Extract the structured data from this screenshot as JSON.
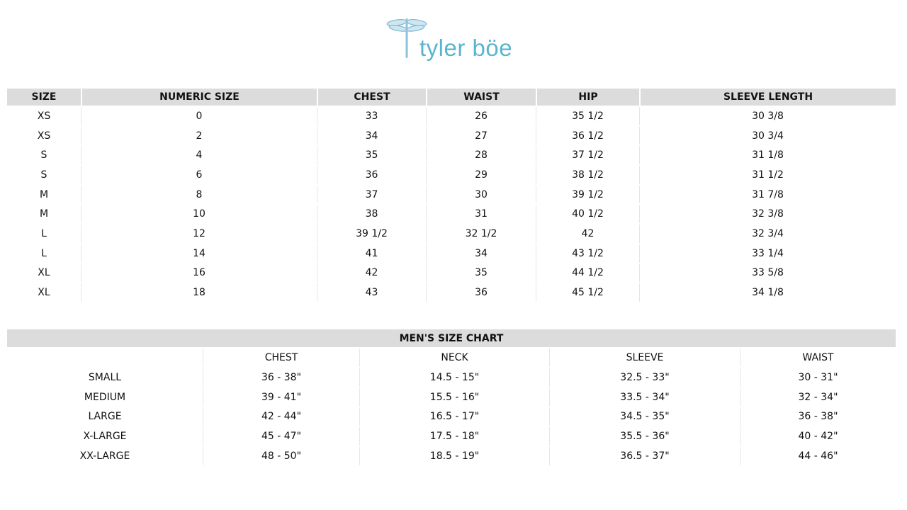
{
  "brand": {
    "logo_text": "tyler böe",
    "logo_icon": "dragonfly-icon",
    "accent_color": "#5ab4cf"
  },
  "womens_table": {
    "headers": [
      "SIZE",
      "NUMERIC SIZE",
      "CHEST",
      "WAIST",
      "HIP",
      "SLEEVE LENGTH"
    ],
    "rows": [
      [
        "XS",
        "0",
        "33",
        "26",
        "35 1/2",
        "30 3/8"
      ],
      [
        "XS",
        "2",
        "34",
        "27",
        "36 1/2",
        "30 3/4"
      ],
      [
        "S",
        "4",
        "35",
        "28",
        "37 1/2",
        "31 1/8"
      ],
      [
        "S",
        "6",
        "36",
        "29",
        "38 1/2",
        "31 1/2"
      ],
      [
        "M",
        "8",
        "37",
        "30",
        "39 1/2",
        "31 7/8"
      ],
      [
        "M",
        "10",
        "38",
        "31",
        "40 1/2",
        "32 3/8"
      ],
      [
        "L",
        "12",
        "39 1/2",
        "32 1/2",
        "42",
        "32 3/4"
      ],
      [
        "L",
        "14",
        "41",
        "34",
        "43 1/2",
        "33 1/4"
      ],
      [
        "XL",
        "16",
        "42",
        "35",
        "44 1/2",
        "33 5/8"
      ],
      [
        "XL",
        "18",
        "43",
        "36",
        "45 1/2",
        "34 1/8"
      ]
    ]
  },
  "mens_table": {
    "title": "MEN'S SIZE CHART",
    "headers": [
      "",
      "CHEST",
      "NECK",
      "SLEEVE",
      "WAIST"
    ],
    "rows": [
      [
        "SMALL",
        "36 - 38\"",
        "14.5 - 15\"",
        "32.5 - 33\"",
        "30 - 31\""
      ],
      [
        "MEDIUM",
        "39 - 41\"",
        "15.5 - 16\"",
        "33.5 - 34\"",
        "32 - 34\""
      ],
      [
        "LARGE",
        "42 - 44\"",
        "16.5 - 17\"",
        "34.5 - 35\"",
        "36 - 38\""
      ],
      [
        "X-LARGE",
        "45 - 47\"",
        "17.5 - 18\"",
        "35.5 - 36\"",
        "40 - 42\""
      ],
      [
        "XX-LARGE",
        "48 - 50\"",
        "18.5 - 19\"",
        "36.5 - 37\"",
        "44 - 46\""
      ]
    ]
  }
}
